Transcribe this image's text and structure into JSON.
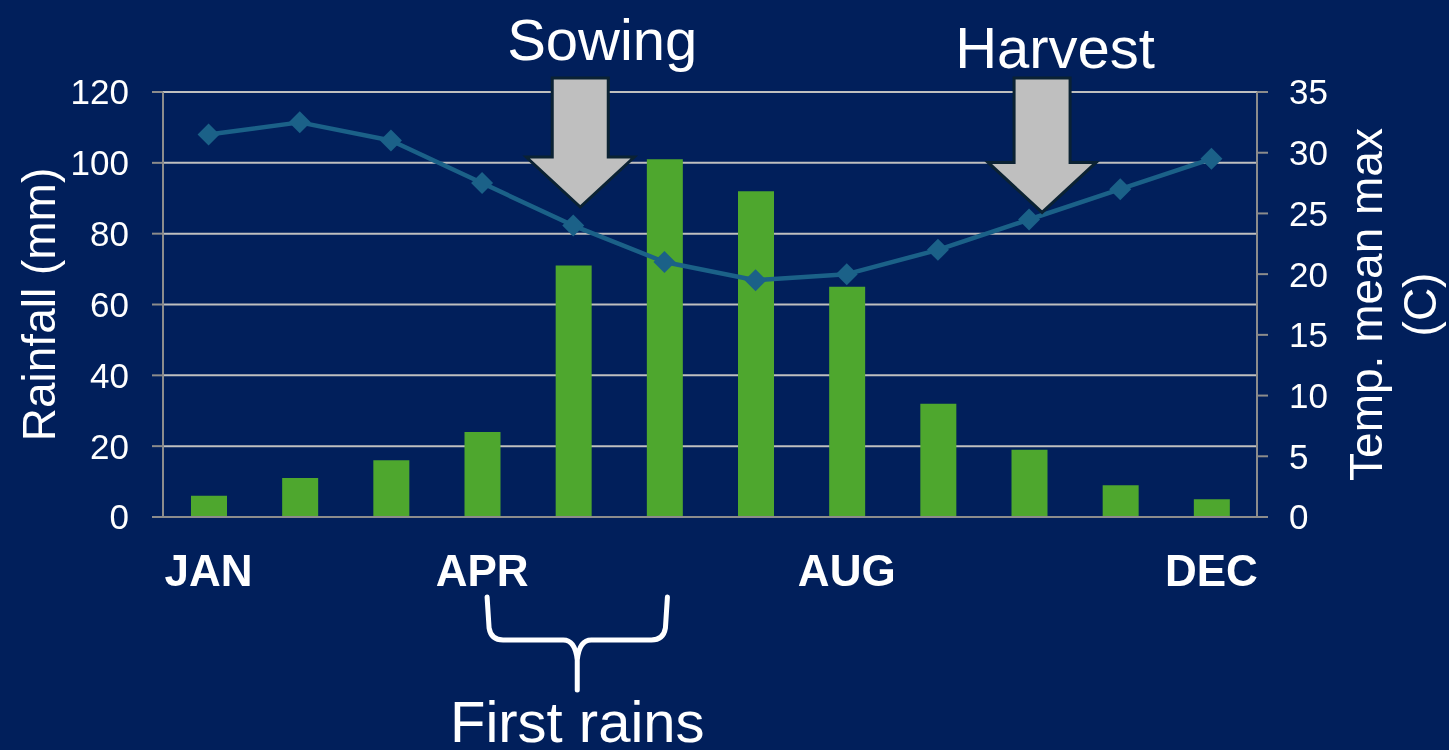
{
  "chart_data": {
    "type": "bar",
    "categories": [
      "JAN",
      null,
      null,
      "APR",
      null,
      null,
      null,
      "AUG",
      null,
      null,
      null,
      "DEC"
    ],
    "series": [
      {
        "color": "#4ea72e",
        "values": [
          6,
          11,
          16,
          24,
          71,
          101,
          92,
          65,
          32,
          19,
          9,
          5
        ]
      },
      {
        "type": "line",
        "axis": "y2",
        "color": "#1b6188",
        "marker": "diamond",
        "values": [
          31.5,
          32.5,
          31,
          27.5,
          24,
          21,
          19.5,
          20,
          22,
          24.5,
          27,
          29.5
        ]
      }
    ],
    "ylabel": "Rainfall (mm)",
    "y2label": "Temp. mean max (C)",
    "ylim": [
      0,
      120
    ],
    "yticks": [
      0,
      20,
      40,
      60,
      80,
      100,
      120
    ],
    "y2lim": [
      0,
      35
    ],
    "y2ticks": [
      0,
      5,
      10,
      15,
      20,
      25,
      30,
      35
    ],
    "grid": "y",
    "annotations": [
      "Sowing",
      {
        "text": "Harvest",
        "y": 86
      },
      "First rains"
    ]
  }
}
